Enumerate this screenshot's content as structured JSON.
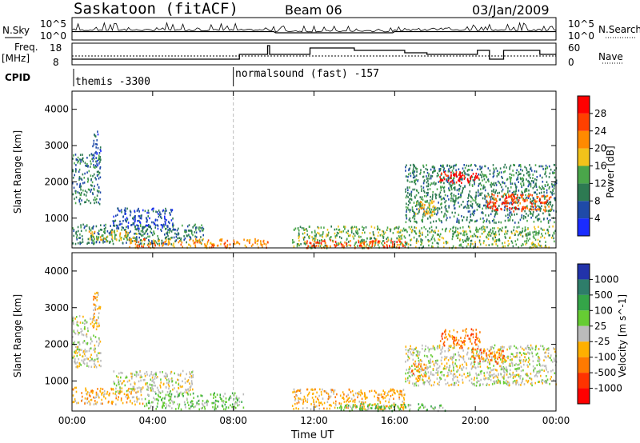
{
  "header": {
    "station": "Saskatoon (fitACF)",
    "beam": "Beam 06",
    "date": "03/Jan/2009"
  },
  "noise_panel": {
    "left_label": "N.Sky",
    "right_label": "N.Search",
    "left_ticks": [
      "10^5",
      "10^0"
    ],
    "right_ticks": [
      "10^5",
      "10^0"
    ]
  },
  "freq_panel": {
    "left_label": "Freq.",
    "left_unit": "[MHz]",
    "right_label": "Nave",
    "left_ticks": [
      "18",
      "8"
    ],
    "right_ticks": [
      "60",
      "0"
    ]
  },
  "cpid": {
    "label": "CPID",
    "segments": [
      {
        "name": "themis -3300",
        "start_hour": 0
      },
      {
        "name": "normalsound (fast) -157",
        "start_hour": 8
      }
    ]
  },
  "colors": {
    "power_scale": [
      "#1a2cff",
      "#1f4aa8",
      "#2d7a52",
      "#4aa64a",
      "#f2c21a",
      "#ff8a00",
      "#ff4000",
      "#ff0000"
    ],
    "velocity_scale": [
      "#2233aa",
      "#2e7d6a",
      "#34a548",
      "#66cc33",
      "#bbbbbb",
      "#ffb000",
      "#ff7a00",
      "#ff3300",
      "#ff0000"
    ]
  },
  "chart_data": [
    {
      "type": "heatmap",
      "panel": "power",
      "ylabel": "Slant Range [km]",
      "xlabel": "Time UT",
      "x_ticks": [
        "00:00",
        "04:00",
        "08:00",
        "12:00",
        "16:00",
        "20:00",
        "00:00"
      ],
      "y_ticks": [
        "1000",
        "2000",
        "3000",
        "4000"
      ],
      "xlim_hours": [
        0,
        24
      ],
      "ylim_km": [
        180,
        4500
      ],
      "colorbar_label": "Power [dB]",
      "colorbar_ticks": [
        "4",
        "8",
        "12",
        "16",
        "20",
        "24",
        "28"
      ],
      "data_gap_hours": [
        9.7,
        10.9
      ],
      "regions": [
        {
          "t0": 0.0,
          "t1": 1.4,
          "r0": 1400,
          "r1": 2800,
          "level": 2
        },
        {
          "t0": 1.0,
          "t1": 1.4,
          "r0": 2400,
          "r1": 3450,
          "level": 1
        },
        {
          "t0": 0.0,
          "t1": 6.5,
          "r0": 300,
          "r1": 850,
          "level": 2
        },
        {
          "t0": 0.8,
          "t1": 3.2,
          "r0": 380,
          "r1": 700,
          "level": 4
        },
        {
          "t0": 2.8,
          "t1": 9.7,
          "r0": 200,
          "r1": 450,
          "level": 5
        },
        {
          "t0": 2.0,
          "t1": 5.0,
          "r0": 700,
          "r1": 1300,
          "level": 1
        },
        {
          "t0": 10.9,
          "t1": 24.0,
          "r0": 200,
          "r1": 800,
          "level": 3
        },
        {
          "t0": 11.5,
          "t1": 16.5,
          "r0": 200,
          "r1": 420,
          "level": 6
        },
        {
          "t0": 16.5,
          "t1": 24.0,
          "r0": 900,
          "r1": 2500,
          "level": 2
        },
        {
          "t0": 18.2,
          "t1": 20.2,
          "r0": 2000,
          "r1": 2300,
          "level": 7
        },
        {
          "t0": 20.5,
          "t1": 23.8,
          "r0": 1200,
          "r1": 1700,
          "level": 6
        },
        {
          "t0": 17.0,
          "t1": 18.0,
          "r0": 1100,
          "r1": 1500,
          "level": 4
        }
      ]
    },
    {
      "type": "heatmap",
      "panel": "velocity",
      "ylabel": "Slant Range [km]",
      "xlabel": "Time UT",
      "x_ticks": [
        "00:00",
        "04:00",
        "08:00",
        "12:00",
        "16:00",
        "20:00",
        "00:00"
      ],
      "y_ticks": [
        "1000",
        "2000",
        "3000",
        "4000"
      ],
      "xlim_hours": [
        0,
        24
      ],
      "ylim_km": [
        180,
        4500
      ],
      "colorbar_label": "Velocity [m s^-1]",
      "colorbar_ticks": [
        "1000",
        "500",
        "100",
        "25",
        "-25",
        "-100",
        "-500",
        "-1000"
      ],
      "data_gap_hours": [
        9.7,
        10.9
      ],
      "regions": [
        {
          "t0": 0.0,
          "t1": 1.4,
          "r0": 1400,
          "r1": 2800,
          "level": 4
        },
        {
          "t0": 1.0,
          "t1": 1.4,
          "r0": 2400,
          "r1": 3450,
          "level": 5
        },
        {
          "t0": 0.0,
          "t1": 3.5,
          "r0": 380,
          "r1": 850,
          "level": 5
        },
        {
          "t0": 3.5,
          "t1": 8.5,
          "r0": 250,
          "r1": 700,
          "level": 3
        },
        {
          "t0": 2.0,
          "t1": 6.0,
          "r0": 700,
          "r1": 1300,
          "level": 4
        },
        {
          "t0": 10.9,
          "t1": 16.5,
          "r0": 250,
          "r1": 800,
          "level": 5
        },
        {
          "t0": 13.0,
          "t1": 18.5,
          "r0": 200,
          "r1": 400,
          "level": 3
        },
        {
          "t0": 16.5,
          "t1": 24.0,
          "r0": 900,
          "r1": 2000,
          "level": 4
        },
        {
          "t0": 18.2,
          "t1": 20.2,
          "r0": 1900,
          "r1": 2450,
          "level": 6
        },
        {
          "t0": 19.8,
          "t1": 21.5,
          "r0": 1500,
          "r1": 1900,
          "level": 6
        },
        {
          "t0": 16.8,
          "t1": 17.6,
          "r0": 1100,
          "r1": 1500,
          "level": 6
        }
      ]
    }
  ]
}
